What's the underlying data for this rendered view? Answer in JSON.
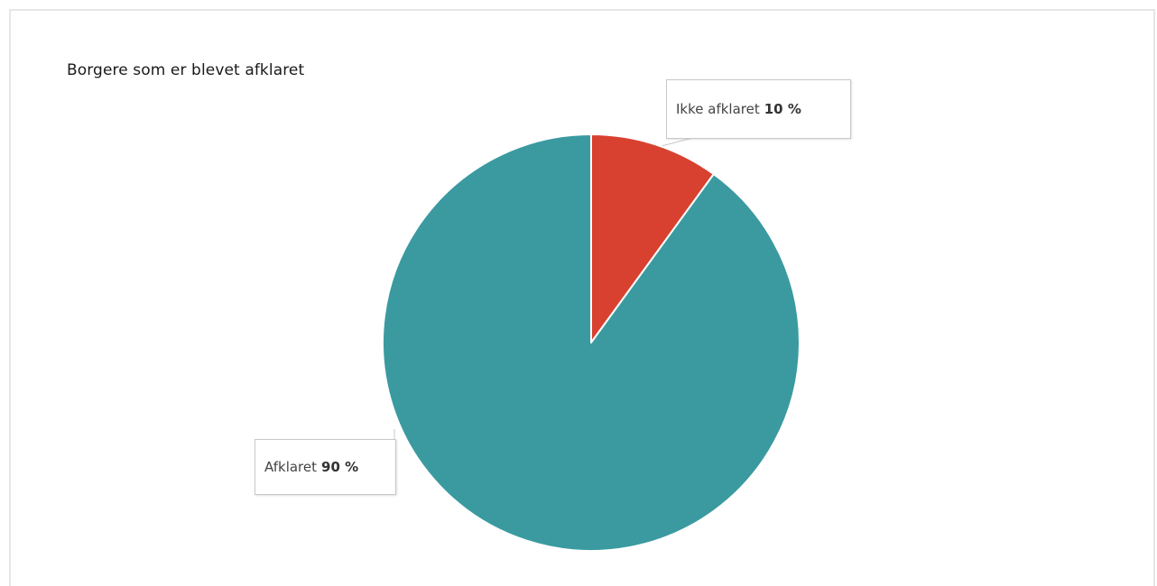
{
  "colors": {
    "afklaret": "#3a9aa0",
    "ikke_afklaret": "#d8412f",
    "slice_border": "#ffffff",
    "callout_border": "#c8c8c8"
  },
  "chart_data": {
    "type": "pie",
    "title": "Borgere som er blevet afklaret",
    "slices": [
      {
        "label": "Afklaret",
        "value": 90,
        "value_label": "90 %",
        "color": "#3a9aa0"
      },
      {
        "label": "Ikke afklaret",
        "value": 10,
        "value_label": "10 %",
        "color": "#d8412f"
      }
    ]
  }
}
